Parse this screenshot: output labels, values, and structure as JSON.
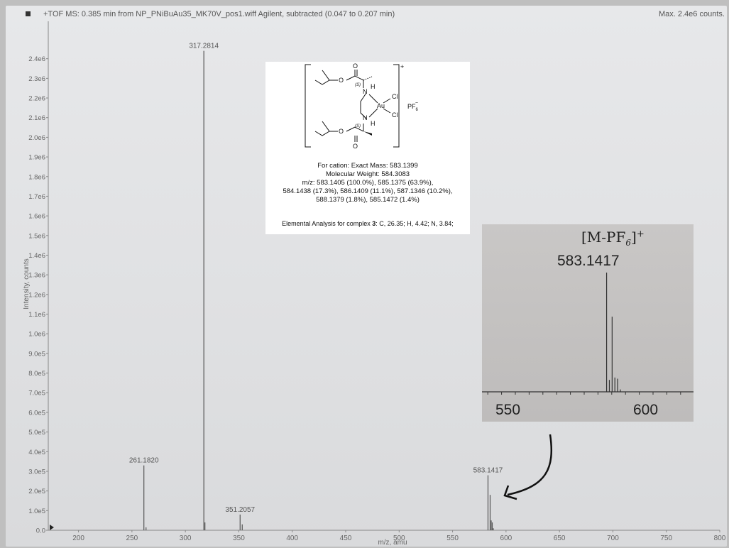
{
  "header": {
    "title": "+TOF MS: 0.385 min from NP_PNiBuAu35_MK70V_pos1.wiff Agilent, subtracted (0.047 to 0.207 min)",
    "max_label": "Max. 2.4e6 counts."
  },
  "chart_data": {
    "type": "bar",
    "xlabel": "m/z, amu",
    "ylabel": "Intensity, counts",
    "xlim": [
      185,
      800
    ],
    "ylim": [
      0,
      2500000
    ],
    "x_ticks": [
      "200",
      "250",
      "300",
      "350",
      "400",
      "450",
      "500",
      "550",
      "600",
      "650",
      "700",
      "750",
      "800"
    ],
    "y_ticks": [
      "0.0",
      "1.0e5",
      "2.0e5",
      "3.0e5",
      "4.0e5",
      "5.0e5",
      "6.0e5",
      "7.0e5",
      "8.0e5",
      "9.0e5",
      "1.0e6",
      "1.1e6",
      "1.2e6",
      "1.3e6",
      "1.4e6",
      "1.5e6",
      "1.6e6",
      "1.7e6",
      "1.8e6",
      "1.9e6",
      "2.0e6",
      "2.1e6",
      "2.2e6",
      "2.3e6",
      "2.4e6"
    ],
    "peaks": [
      {
        "mz": 261.18,
        "intensity": 330000,
        "label": "261.1820"
      },
      {
        "mz": 263.2,
        "intensity": 15000
      },
      {
        "mz": 317.28,
        "intensity": 2440000,
        "label": "317.2814"
      },
      {
        "mz": 318.3,
        "intensity": 40000
      },
      {
        "mz": 351.21,
        "intensity": 80000,
        "label": "351.2057"
      },
      {
        "mz": 353.2,
        "intensity": 30000
      },
      {
        "mz": 583.14,
        "intensity": 280000,
        "label": "583.1417"
      },
      {
        "mz": 585.14,
        "intensity": 180000
      },
      {
        "mz": 586.14,
        "intensity": 50000
      },
      {
        "mz": 587.13,
        "intensity": 40000
      },
      {
        "mz": 588.14,
        "intensity": 10000
      }
    ]
  },
  "structure_box": {
    "charge": "+",
    "counterion": "PF",
    "counterion_sub": "6",
    "counterion_sup": "−",
    "atoms": {
      "metal": "Au",
      "cl1": "Cl",
      "cl2": "Cl",
      "n1": "N",
      "n2": "N",
      "h1": "H",
      "h2": "H",
      "o_top": "O",
      "o_ester_top": "O",
      "o_bottom": "O",
      "o_ester_bottom": "O",
      "stereo_top": "(S)",
      "stereo_bottom": "(S)"
    },
    "lines": [
      "For cation:     Exact Mass: 583.1399",
      "Molecular Weight: 584.3083",
      "m/z: 583.1405 (100.0%), 585.1375 (63.9%),",
      "584.1438 (17.3%), 586.1409 (11.1%), 587.1346 (10.2%),",
      "588.1379 (1.8%), 585.1472 (1.4%)"
    ],
    "elemental_prefix": "Elemental Analysis for complex ",
    "elemental_bold": "3",
    "elemental_suffix": ": C, 26.35; H, 4.42; N, 3.84;"
  },
  "inset": {
    "formula_main": "[M-PF",
    "formula_sub": "6",
    "formula_close": "]",
    "formula_sup": "+",
    "peak_label": "583.1417",
    "x_ticks": [
      "550",
      "600"
    ],
    "xlim": [
      532,
      625
    ],
    "peaks": [
      {
        "mz": 583.14,
        "rel": 1.0
      },
      {
        "mz": 584.14,
        "rel": 0.1
      },
      {
        "mz": 585.14,
        "rel": 0.63
      },
      {
        "mz": 586.14,
        "rel": 0.12
      },
      {
        "mz": 587.13,
        "rel": 0.11
      },
      {
        "mz": 588.14,
        "rel": 0.02
      }
    ]
  }
}
